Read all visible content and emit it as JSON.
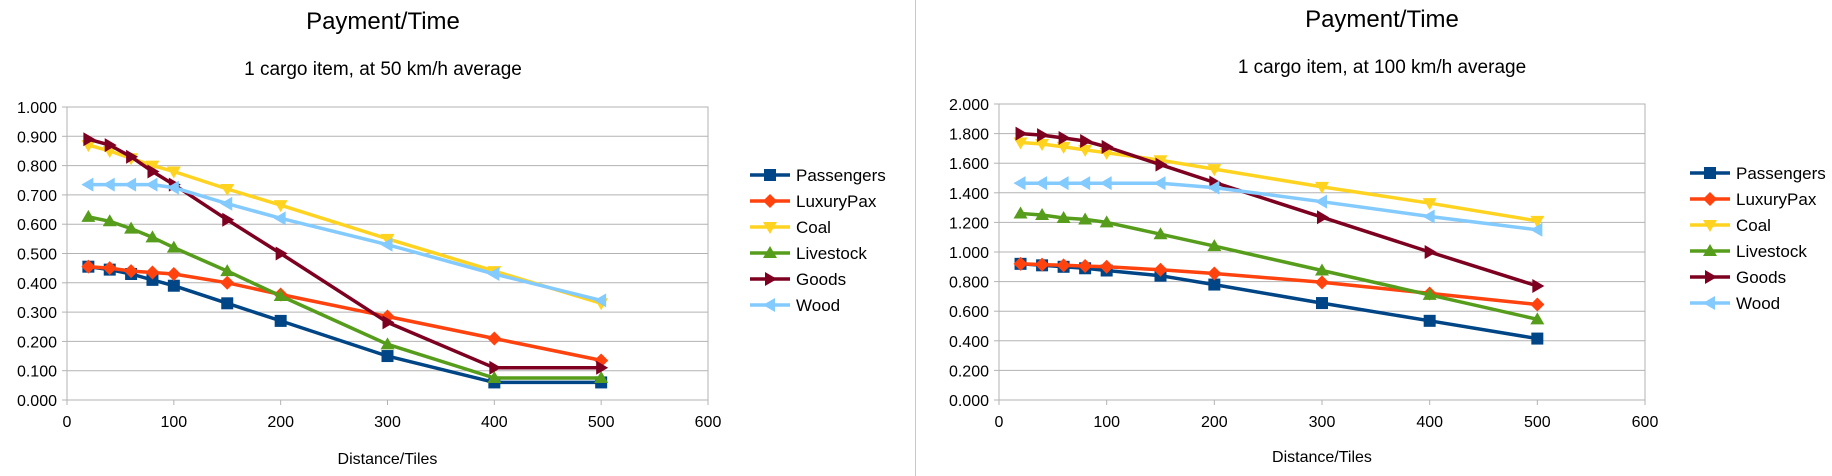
{
  "chart_data": [
    {
      "type": "line",
      "title": "Payment/Time",
      "subtitle": "1 cargo item, at 50 km/h average",
      "xlabel": "Distance/Tiles",
      "ylabel": "",
      "x": [
        20,
        40,
        60,
        80,
        100,
        150,
        200,
        300,
        400,
        500
      ],
      "xlim": [
        0,
        600
      ],
      "xticks": [
        0,
        100,
        200,
        300,
        400,
        500,
        600
      ],
      "ylim": [
        0,
        1.0
      ],
      "yticks": [
        0,
        0.1,
        0.2,
        0.3,
        0.4,
        0.5,
        0.6,
        0.7,
        0.8,
        0.9,
        1.0
      ],
      "grid": "horizontal",
      "legend": "right",
      "series": [
        {
          "name": "Passengers",
          "color": "#004586",
          "marker": "square",
          "values": [
            0.455,
            0.445,
            0.43,
            0.41,
            0.39,
            0.33,
            0.27,
            0.15,
            0.06,
            0.06
          ]
        },
        {
          "name": "LuxuryPax",
          "color": "#ff420e",
          "marker": "diamond",
          "values": [
            0.455,
            0.45,
            0.44,
            0.435,
            0.43,
            0.4,
            0.36,
            0.285,
            0.21,
            0.135
          ]
        },
        {
          "name": "Coal",
          "color": "#ffd320",
          "marker": "triangle-down",
          "values": [
            0.87,
            0.85,
            0.825,
            0.8,
            0.78,
            0.72,
            0.665,
            0.55,
            0.44,
            0.33
          ]
        },
        {
          "name": "Livestock",
          "color": "#579d1c",
          "marker": "triangle-up",
          "values": [
            0.625,
            0.61,
            0.585,
            0.555,
            0.52,
            0.44,
            0.355,
            0.19,
            0.075,
            0.075
          ]
        },
        {
          "name": "Goods",
          "color": "#7e0021",
          "marker": "triangle-right",
          "values": [
            0.89,
            0.87,
            0.83,
            0.78,
            0.735,
            0.615,
            0.5,
            0.265,
            0.11,
            0.11
          ]
        },
        {
          "name": "Wood",
          "color": "#83caff",
          "marker": "triangle-left",
          "values": [
            0.735,
            0.735,
            0.735,
            0.735,
            0.725,
            0.67,
            0.62,
            0.53,
            0.43,
            0.34
          ]
        }
      ]
    },
    {
      "type": "line",
      "title": "Payment/Time",
      "subtitle": "1 cargo item, at 100 km/h average",
      "xlabel": "Distance/Tiles",
      "ylabel": "",
      "x": [
        20,
        40,
        60,
        80,
        100,
        150,
        200,
        300,
        400,
        500
      ],
      "xlim": [
        0,
        600
      ],
      "xticks": [
        0,
        100,
        200,
        300,
        400,
        500,
        600
      ],
      "ylim": [
        0,
        2.0
      ],
      "yticks": [
        0,
        0.2,
        0.4,
        0.6,
        0.8,
        1.0,
        1.2,
        1.4,
        1.6,
        1.8,
        2.0
      ],
      "grid": "horizontal",
      "legend": "right",
      "series": [
        {
          "name": "Passengers",
          "color": "#004586",
          "marker": "square",
          "values": [
            0.92,
            0.91,
            0.9,
            0.89,
            0.875,
            0.84,
            0.78,
            0.655,
            0.535,
            0.415
          ]
        },
        {
          "name": "LuxuryPax",
          "color": "#ff420e",
          "marker": "diamond",
          "values": [
            0.92,
            0.915,
            0.91,
            0.905,
            0.9,
            0.88,
            0.855,
            0.795,
            0.72,
            0.645
          ]
        },
        {
          "name": "Coal",
          "color": "#ffd320",
          "marker": "triangle-down",
          "values": [
            1.74,
            1.73,
            1.71,
            1.69,
            1.67,
            1.62,
            1.56,
            1.44,
            1.33,
            1.21
          ]
        },
        {
          "name": "Livestock",
          "color": "#579d1c",
          "marker": "triangle-up",
          "values": [
            1.26,
            1.25,
            1.23,
            1.22,
            1.2,
            1.12,
            1.04,
            0.875,
            0.71,
            0.545
          ]
        },
        {
          "name": "Goods",
          "color": "#7e0021",
          "marker": "triangle-right",
          "values": [
            1.8,
            1.79,
            1.77,
            1.75,
            1.71,
            1.59,
            1.47,
            1.235,
            1.0,
            0.77
          ]
        },
        {
          "name": "Wood",
          "color": "#83caff",
          "marker": "triangle-left",
          "values": [
            1.465,
            1.465,
            1.465,
            1.465,
            1.465,
            1.465,
            1.435,
            1.34,
            1.24,
            1.15
          ]
        }
      ]
    }
  ]
}
